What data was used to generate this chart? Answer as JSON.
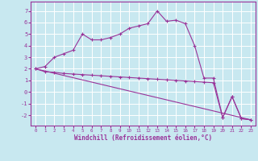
{
  "bg_color": "#c8e8f0",
  "grid_color": "#ffffff",
  "line_color": "#993399",
  "xlabel": "Windchill (Refroidissement éolien,°C)",
  "x_ticks": [
    0,
    1,
    2,
    3,
    4,
    5,
    6,
    7,
    8,
    9,
    10,
    11,
    12,
    13,
    14,
    15,
    16,
    17,
    18,
    19,
    20,
    21,
    22,
    23
  ],
  "y_ticks": [
    -2,
    -1,
    0,
    1,
    2,
    3,
    4,
    5,
    6,
    7
  ],
  "ylim": [
    -2.9,
    7.8
  ],
  "xlim": [
    -0.5,
    23.5
  ],
  "line1_x": [
    0,
    1,
    2,
    3,
    4,
    5,
    6,
    7,
    8,
    9,
    10,
    11,
    12,
    13,
    14,
    15,
    16,
    17,
    18,
    19,
    20,
    21,
    22,
    23
  ],
  "line1_y": [
    2.0,
    2.2,
    3.0,
    3.3,
    3.6,
    5.0,
    4.5,
    4.5,
    4.7,
    5.0,
    5.5,
    5.7,
    5.9,
    7.0,
    6.1,
    6.2,
    5.9,
    4.0,
    1.2,
    1.2,
    -2.2,
    -0.4,
    -2.3,
    -2.4
  ],
  "line2_x": [
    0,
    23
  ],
  "line2_y": [
    2.0,
    -2.4
  ],
  "line3_x": [
    0,
    1,
    2,
    3,
    4,
    5,
    6,
    7,
    8,
    9,
    10,
    11,
    12,
    13,
    14,
    15,
    16,
    17,
    18,
    19,
    20,
    21,
    22,
    23
  ],
  "line3_y": [
    2.0,
    1.75,
    1.7,
    1.6,
    1.55,
    1.5,
    1.45,
    1.4,
    1.35,
    1.3,
    1.25,
    1.2,
    1.15,
    1.1,
    1.05,
    1.0,
    0.95,
    0.9,
    0.85,
    0.8,
    -2.2,
    -0.4,
    -2.3,
    -2.4
  ]
}
